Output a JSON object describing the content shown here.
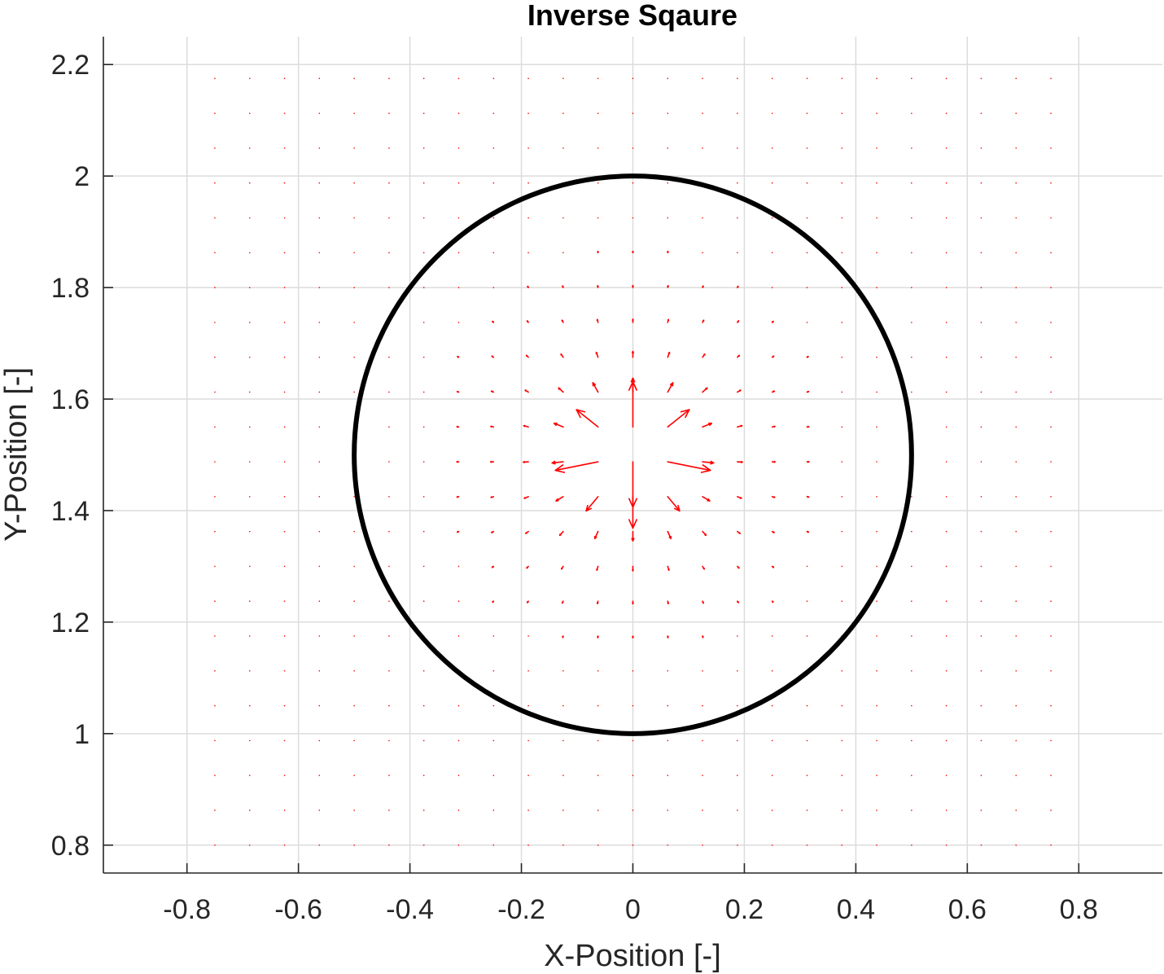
{
  "chart_data": {
    "type": "quiver",
    "title": "Inverse Sqaure",
    "xlabel": "X-Position [-]",
    "ylabel": "Y-Position [-]",
    "xlim": [
      -0.95,
      0.95
    ],
    "ylim": [
      0.75,
      2.25
    ],
    "xticks": [
      -0.8,
      -0.6,
      -0.4,
      -0.2,
      0,
      0.2,
      0.4,
      0.6,
      0.8
    ],
    "xtick_labels": [
      "-0.8",
      "-0.6",
      "-0.4",
      "-0.2",
      "0",
      "0.2",
      "0.4",
      "0.6",
      "0.8"
    ],
    "yticks": [
      0.8,
      1,
      1.2,
      1.4,
      1.6,
      1.8,
      2,
      2.2
    ],
    "ytick_labels": [
      "0.8",
      "1",
      "1.2",
      "1.4",
      "1.6",
      "1.8",
      "2",
      "2.2"
    ],
    "grid": true,
    "source": {
      "x": 0,
      "y": 1.5
    },
    "field": {
      "x_range": [
        -0.75,
        0.75
      ],
      "y_range": [
        0.8,
        2.2
      ],
      "spacing": 0.0625,
      "law": "inverse-square",
      "color": "#ff0000"
    },
    "circle": {
      "center": [
        0,
        1.5
      ],
      "radius": 0.5,
      "color": "#000000"
    }
  }
}
